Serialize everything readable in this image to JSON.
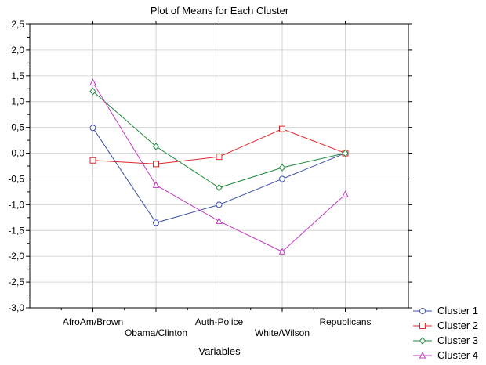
{
  "chart_data": {
    "type": "line",
    "title": "Plot of Means for Each Cluster",
    "xlabel": "Variables",
    "ylabel": "",
    "categories": [
      "AfroAm/Brown",
      "Obama/Clinton",
      "Auth-Police",
      "White/Wilson",
      "Republicans"
    ],
    "ylim": [
      -3.0,
      2.5
    ],
    "yticks": [
      "2,5",
      "2,0",
      "1,5",
      "1,0",
      "0,5",
      "0,0",
      "-0,5",
      "-1,0",
      "-1,5",
      "-2,0",
      "-2,5",
      "-3,0"
    ],
    "ytick_values": [
      2.5,
      2.0,
      1.5,
      1.0,
      0.5,
      0.0,
      -0.5,
      -1.0,
      -1.5,
      -2.0,
      -2.5,
      -3.0
    ],
    "grid": true,
    "legend_position": "bottom-right",
    "series": [
      {
        "name": "Cluster  1",
        "values": [
          0.49,
          -1.35,
          -1.0,
          -0.5,
          0.0
        ],
        "color": "#3b4fa8",
        "marker": "circle"
      },
      {
        "name": "Cluster  2",
        "values": [
          -0.14,
          -0.21,
          -0.07,
          0.47,
          0.0
        ],
        "color": "#e0262a",
        "marker": "square"
      },
      {
        "name": "Cluster  3",
        "values": [
          1.2,
          0.13,
          -0.67,
          -0.28,
          0.0
        ],
        "color": "#1f8a3c",
        "marker": "diamond"
      },
      {
        "name": "Cluster  4",
        "values": [
          1.37,
          -0.62,
          -1.32,
          -1.91,
          -0.8
        ],
        "color": "#c03cc0",
        "marker": "triangle"
      }
    ]
  }
}
